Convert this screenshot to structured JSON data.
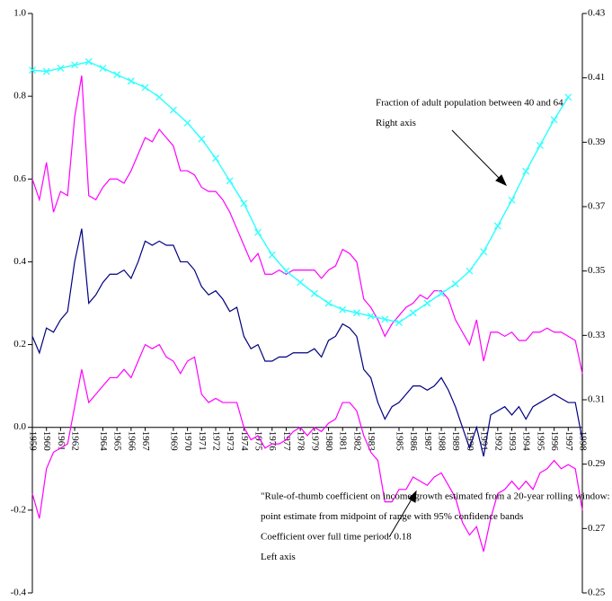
{
  "chart_data": {
    "type": "line",
    "xlim": [
      1959,
      1998
    ],
    "xticks": [
      1959,
      1960,
      1961,
      1962,
      1964,
      1965,
      1966,
      1967,
      1969,
      1970,
      1971,
      1972,
      1973,
      1974,
      1975,
      1976,
      1977,
      1978,
      1979,
      1980,
      1981,
      1982,
      1983,
      1985,
      1986,
      1987,
      1988,
      1989,
      1990,
      1991,
      1992,
      1993,
      1994,
      1995,
      1996,
      1997,
      1998
    ],
    "ylim": [
      -0.4,
      1.0
    ],
    "yticks": [
      {
        "value": -0.4,
        "label": "-0.4"
      },
      {
        "value": -0.2,
        "label": "-0.2"
      },
      {
        "value": 0,
        "label": "0.0"
      },
      0.2,
      0.4,
      0.6,
      0.8,
      {
        "value": 1.0,
        "label": "1.0"
      }
    ],
    "y2lim": [
      0.25,
      0.43
    ],
    "y2ticks": [
      0.25,
      0.27,
      0.29,
      0.31,
      0.33,
      0.35,
      0.37,
      0.39,
      0.41,
      0.43
    ],
    "annotations": [
      {
        "lines": [
          "Fraction of adult population between 40 and 64",
          "Right axis"
        ]
      },
      {
        "lines": [
          "\"Rule-of-thumb coefficient on income growth estimated from a 20-year rolling window:",
          "point estimate from midpoint of range with 95% confidence bands",
          "Coefficient over full time period: 0.18",
          "Left axis"
        ]
      }
    ],
    "series": [
      {
        "color": "#ff00ff",
        "x": [
          1959,
          1959.5,
          1960,
          1960.5,
          1961,
          1961.5,
          1962,
          1962.5,
          1963,
          1963.5,
          1964,
          1964.5,
          1965,
          1965.5,
          1966,
          1966.5,
          1967,
          1967.5,
          1968,
          1968.5,
          1969,
          1969.5,
          1970,
          1970.5,
          1971,
          1971.5,
          1972,
          1972.5,
          1973,
          1973.5,
          1974,
          1974.5,
          1975,
          1975.5,
          1976,
          1976.5,
          1977,
          1977.5,
          1978,
          1978.5,
          1979,
          1979.5,
          1980,
          1980.5,
          1981,
          1981.5,
          1982,
          1982.5,
          1983,
          1983.5,
          1984,
          1984.5,
          1985,
          1985.5,
          1986,
          1986.5,
          1987,
          1987.5,
          1988,
          1988.5,
          1989,
          1989.5,
          1990,
          1990.5,
          1991,
          1991.5,
          1992,
          1992.5,
          1993,
          1993.5,
          1994,
          1994.5,
          1995,
          1995.5,
          1996,
          1996.5,
          1997,
          1997.5,
          1998
        ],
        "values": [
          0.6,
          0.55,
          0.64,
          0.52,
          0.57,
          0.56,
          0.75,
          0.85,
          0.56,
          0.55,
          0.58,
          0.6,
          0.6,
          0.59,
          0.62,
          0.66,
          0.7,
          0.69,
          0.72,
          0.7,
          0.68,
          0.62,
          0.62,
          0.61,
          0.58,
          0.57,
          0.57,
          0.55,
          0.52,
          0.48,
          0.44,
          0.4,
          0.42,
          0.37,
          0.37,
          0.38,
          0.37,
          0.38,
          0.38,
          0.38,
          0.38,
          0.36,
          0.38,
          0.39,
          0.43,
          0.42,
          0.4,
          0.31,
          0.29,
          0.26,
          0.22,
          0.25,
          0.27,
          0.29,
          0.3,
          0.32,
          0.31,
          0.33,
          0.33,
          0.31,
          0.26,
          0.23,
          0.2,
          0.26,
          0.16,
          0.23,
          0.23,
          0.22,
          0.23,
          0.21,
          0.21,
          0.23,
          0.23,
          0.24,
          0.23,
          0.23,
          0.22,
          0.21,
          0.13
        ]
      },
      {
        "color": "#000080",
        "x": [
          1959,
          1959.5,
          1960,
          1960.5,
          1961,
          1961.5,
          1962,
          1962.5,
          1963,
          1963.5,
          1964,
          1964.5,
          1965,
          1965.5,
          1966,
          1966.5,
          1967,
          1967.5,
          1968,
          1968.5,
          1969,
          1969.5,
          1970,
          1970.5,
          1971,
          1971.5,
          1972,
          1972.5,
          1973,
          1973.5,
          1974,
          1974.5,
          1975,
          1975.5,
          1976,
          1976.5,
          1977,
          1977.5,
          1978,
          1978.5,
          1979,
          1979.5,
          1980,
          1980.5,
          1981,
          1981.5,
          1982,
          1982.5,
          1983,
          1983.5,
          1984,
          1984.5,
          1985,
          1985.5,
          1986,
          1986.5,
          1987,
          1987.5,
          1988,
          1988.5,
          1989,
          1989.5,
          1990,
          1990.5,
          1991,
          1991.5,
          1992,
          1992.5,
          1993,
          1993.5,
          1994,
          1994.5,
          1995,
          1995.5,
          1996,
          1996.5,
          1997,
          1997.5,
          1998
        ],
        "values": [
          0.22,
          0.18,
          0.24,
          0.23,
          0.26,
          0.28,
          0.4,
          0.48,
          0.3,
          0.32,
          0.35,
          0.37,
          0.37,
          0.38,
          0.36,
          0.4,
          0.45,
          0.44,
          0.45,
          0.44,
          0.44,
          0.4,
          0.4,
          0.38,
          0.34,
          0.32,
          0.33,
          0.31,
          0.28,
          0.29,
          0.22,
          0.19,
          0.2,
          0.16,
          0.16,
          0.17,
          0.17,
          0.18,
          0.18,
          0.18,
          0.19,
          0.17,
          0.21,
          0.22,
          0.25,
          0.24,
          0.22,
          0.14,
          0.12,
          0.06,
          0.02,
          0.05,
          0.06,
          0.08,
          0.1,
          0.1,
          0.09,
          0.1,
          0.12,
          0.09,
          0.05,
          0.0,
          -0.05,
          0.0,
          -0.07,
          0.03,
          0.04,
          0.05,
          0.03,
          0.05,
          0.02,
          0.05,
          0.06,
          0.07,
          0.08,
          0.07,
          0.06,
          0.06,
          -0.03
        ]
      },
      {
        "color": "#ff00ff",
        "x": [
          1959,
          1959.5,
          1960,
          1960.5,
          1961,
          1961.5,
          1962,
          1962.5,
          1963,
          1963.5,
          1964,
          1964.5,
          1965,
          1965.5,
          1966,
          1966.5,
          1967,
          1967.5,
          1968,
          1968.5,
          1969,
          1969.5,
          1970,
          1970.5,
          1971,
          1971.5,
          1972,
          1972.5,
          1973,
          1973.5,
          1974,
          1974.5,
          1975,
          1975.5,
          1976,
          1976.5,
          1977,
          1977.5,
          1978,
          1978.5,
          1979,
          1979.5,
          1980,
          1980.5,
          1981,
          1981.5,
          1982,
          1982.5,
          1983,
          1983.5,
          1984,
          1984.5,
          1985,
          1985.5,
          1986,
          1986.5,
          1987,
          1987.5,
          1988,
          1988.5,
          1989,
          1989.5,
          1990,
          1990.5,
          1991,
          1991.5,
          1992,
          1992.5,
          1993,
          1993.5,
          1994,
          1994.5,
          1995,
          1995.5,
          1996,
          1996.5,
          1997,
          1997.5,
          1998
        ],
        "values": [
          -0.16,
          -0.22,
          -0.1,
          -0.06,
          -0.05,
          -0.04,
          0.05,
          0.14,
          0.06,
          0.08,
          0.1,
          0.12,
          0.12,
          0.14,
          0.12,
          0.16,
          0.2,
          0.19,
          0.2,
          0.17,
          0.16,
          0.13,
          0.16,
          0.17,
          0.08,
          0.06,
          0.07,
          0.06,
          0.06,
          0.06,
          0.0,
          -0.03,
          -0.02,
          -0.05,
          -0.04,
          -0.04,
          -0.03,
          -0.01,
          0.0,
          -0.02,
          0.0,
          -0.01,
          0.01,
          0.02,
          0.06,
          0.06,
          0.04,
          -0.02,
          -0.06,
          -0.08,
          -0.18,
          -0.18,
          -0.15,
          -0.15,
          -0.12,
          -0.13,
          -0.14,
          -0.12,
          -0.11,
          -0.14,
          -0.17,
          -0.23,
          -0.26,
          -0.24,
          -0.3,
          -0.22,
          -0.16,
          -0.15,
          -0.13,
          -0.15,
          -0.13,
          -0.15,
          -0.11,
          -0.1,
          -0.08,
          -0.1,
          -0.09,
          -0.1,
          -0.2
        ]
      },
      {
        "color": "#33ffff",
        "axis": "y2",
        "marker": "x",
        "x": [
          1959,
          1960,
          1961,
          1962,
          1963,
          1964,
          1965,
          1966,
          1967,
          1968,
          1969,
          1970,
          1971,
          1972,
          1973,
          1974,
          1975,
          1976,
          1977,
          1978,
          1979,
          1980,
          1981,
          1982,
          1983,
          1984,
          1985,
          1986,
          1987,
          1988,
          1989,
          1990,
          1991,
          1992,
          1993,
          1994,
          1995,
          1996,
          1997
        ],
        "values": [
          0.4124,
          0.412,
          0.413,
          0.414,
          0.415,
          0.413,
          0.411,
          0.409,
          0.407,
          0.404,
          0.4,
          0.396,
          0.391,
          0.385,
          0.378,
          0.371,
          0.362,
          0.355,
          0.35,
          0.3465,
          0.343,
          0.34,
          0.338,
          0.337,
          0.336,
          0.335,
          0.334,
          0.337,
          0.34,
          0.343,
          0.346,
          0.35,
          0.356,
          0.364,
          0.372,
          0.381,
          0.389,
          0.397,
          0.404
        ]
      }
    ]
  }
}
